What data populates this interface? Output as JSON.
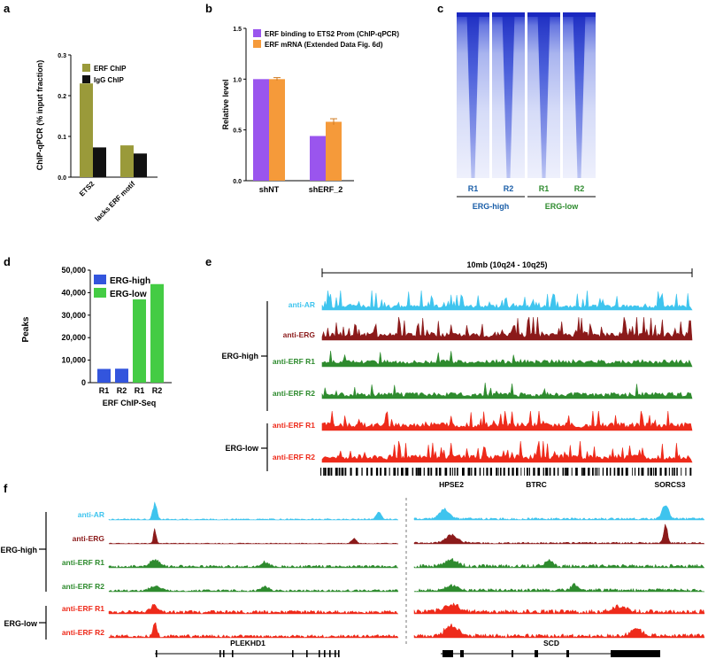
{
  "panels": {
    "a": {
      "letter": "a",
      "chart_data": {
        "type": "bar",
        "categories": [
          "ETS2",
          "lacks ERF motif"
        ],
        "series": [
          {
            "name": "ERF ChIP",
            "values": [
              0.23,
              0.078
            ]
          },
          {
            "name": "IgG ChIP",
            "values": [
              0.073,
              0.058
            ]
          }
        ],
        "ylabel": "ChIP-qPCR (% input fraction)",
        "yticks": [
          0.0,
          0.1,
          0.2,
          0.3
        ],
        "ytick_labels": [
          "0.0",
          "0.1",
          "0.2",
          "0.3"
        ],
        "ylim": [
          0,
          0.3
        ],
        "colors": [
          "#9a9a3a",
          "#111111"
        ],
        "legend": "top-right"
      }
    },
    "b": {
      "letter": "b",
      "chart_data": {
        "type": "bar",
        "categories": [
          "shNT",
          "shERF_2"
        ],
        "series": [
          {
            "name": "ERF binding to ETS2 Prom (ChIP-qPCR)",
            "values": [
              1.0,
              0.44
            ]
          },
          {
            "name": "ERF mRNA (Extended Data Fig. 6d)",
            "values": [
              1.0,
              0.58
            ],
            "error": [
              0.015,
              0.03
            ]
          }
        ],
        "ylabel": "Relative level",
        "yticks": [
          0.0,
          0.5,
          1.0,
          1.5
        ],
        "ytick_labels": [
          "0.0",
          "0.5",
          "1.0",
          "1.5"
        ],
        "ylim": [
          0,
          1.5
        ],
        "colors": [
          "#9a55ee",
          "#f59a3a"
        ],
        "legend": "top"
      }
    },
    "c": {
      "letter": "c",
      "columns": [
        "R1",
        "R2",
        "R1",
        "R2"
      ],
      "groups": [
        {
          "label": "ERG-high",
          "color": "#1a5ea8"
        },
        {
          "label": "ERG-low",
          "color": "#2e8b2e"
        }
      ],
      "heatmap_color": "#2a3fd0"
    },
    "d": {
      "letter": "d",
      "chart_data": {
        "type": "bar",
        "categories": [
          "R1",
          "R2",
          "R1",
          "R2"
        ],
        "values": [
          6100,
          6200,
          37000,
          43800
        ],
        "bar_colors": [
          "#3355dd",
          "#3355dd",
          "#44cc44",
          "#44cc44"
        ],
        "legend_entries": [
          {
            "name": "ERG-high",
            "color": "#3355dd"
          },
          {
            "name": "ERG-low",
            "color": "#44cc44"
          }
        ],
        "ylabel": "Peaks",
        "xlabel": "ERF ChIP-Seq",
        "yticks": [
          0,
          10000,
          20000,
          30000,
          40000,
          50000
        ],
        "ytick_labels": [
          "0",
          "10,000",
          "20,000",
          "30,000",
          "40,000",
          "50,000"
        ],
        "ylim": [
          0,
          50000
        ],
        "legend": "top-left"
      }
    },
    "e": {
      "letter": "e",
      "scale_label": "10mb (10q24 - 10q25)",
      "group_high": "ERG-high",
      "group_low": "ERG-low",
      "tracks": [
        {
          "label": "anti-AR",
          "color": "#3ec4ee"
        },
        {
          "label": "anti-ERG",
          "color": "#8b1a1a"
        },
        {
          "label": "anti-ERF R1",
          "color": "#2e8b2e"
        },
        {
          "label": "anti-ERF R2",
          "color": "#2e8b2e"
        },
        {
          "label": "anti-ERF R1",
          "color": "#ee2a1a"
        },
        {
          "label": "anti-ERF R2",
          "color": "#ee2a1a"
        }
      ],
      "genes": [
        "HPSE2",
        "BTRC",
        "SORCS3"
      ]
    },
    "f": {
      "letter": "f",
      "group_high": "ERG-high",
      "group_low": "ERG-low",
      "tracks": [
        {
          "label": "anti-AR",
          "color": "#3ec4ee"
        },
        {
          "label": "anti-ERG",
          "color": "#8b1a1a"
        },
        {
          "label": "anti-ERF R1",
          "color": "#2e8b2e"
        },
        {
          "label": "anti-ERF R2",
          "color": "#2e8b2e"
        },
        {
          "label": "anti-ERF R1",
          "color": "#ee2a1a"
        },
        {
          "label": "anti-ERF R2",
          "color": "#ee2a1a"
        }
      ],
      "genes": [
        "PLEKHD1",
        "SCD"
      ]
    }
  }
}
